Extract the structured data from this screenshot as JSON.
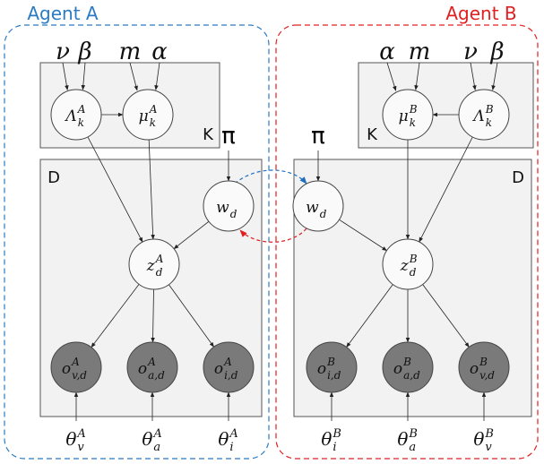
{
  "agents": [
    {
      "title": "Agent A",
      "plate_k": "K",
      "plate_d": "D",
      "pi": "π",
      "hyper_lambda": [
        "ν",
        "β"
      ],
      "hyper_mu": [
        "m",
        "α"
      ],
      "nodes": {
        "lambda": {
          "symbol": "Λ",
          "sub": "k",
          "sup": "A"
        },
        "mu": {
          "symbol": "μ",
          "sub": "k",
          "sup": "A"
        },
        "w": {
          "symbol": "w",
          "sub": "d"
        },
        "z": {
          "symbol": "z",
          "sub": "d",
          "sup": "A"
        },
        "o1": {
          "symbol": "o",
          "sub": "v,d",
          "sup": "A"
        },
        "o2": {
          "symbol": "o",
          "sub": "a,d",
          "sup": "A"
        },
        "o3": {
          "symbol": "o",
          "sub": "i,d",
          "sup": "A"
        }
      },
      "thetas": [
        {
          "symbol": "θ",
          "sub": "v",
          "sup": "A"
        },
        {
          "symbol": "θ",
          "sub": "a",
          "sup": "A"
        },
        {
          "symbol": "θ",
          "sub": "i",
          "sup": "A"
        }
      ]
    },
    {
      "title": "Agent B",
      "plate_k": "K",
      "plate_d": "D",
      "pi": "π",
      "hyper_lambda": [
        "ν",
        "β"
      ],
      "hyper_mu": [
        "α",
        "m"
      ],
      "nodes": {
        "lambda": {
          "symbol": "Λ",
          "sub": "k",
          "sup": "B"
        },
        "mu": {
          "symbol": "μ",
          "sub": "k",
          "sup": "B"
        },
        "w": {
          "symbol": "w",
          "sub": "d"
        },
        "z": {
          "symbol": "z",
          "sub": "d",
          "sup": "B"
        },
        "o1": {
          "symbol": "o",
          "sub": "i,d",
          "sup": "B"
        },
        "o2": {
          "symbol": "o",
          "sub": "a,d",
          "sup": "B"
        },
        "o3": {
          "symbol": "o",
          "sub": "v,d",
          "sup": "B"
        }
      },
      "thetas": [
        {
          "symbol": "θ",
          "sub": "i",
          "sup": "B"
        },
        {
          "symbol": "θ",
          "sub": "a",
          "sup": "B"
        },
        {
          "symbol": "θ",
          "sub": "v",
          "sup": "B"
        }
      ]
    }
  ]
}
